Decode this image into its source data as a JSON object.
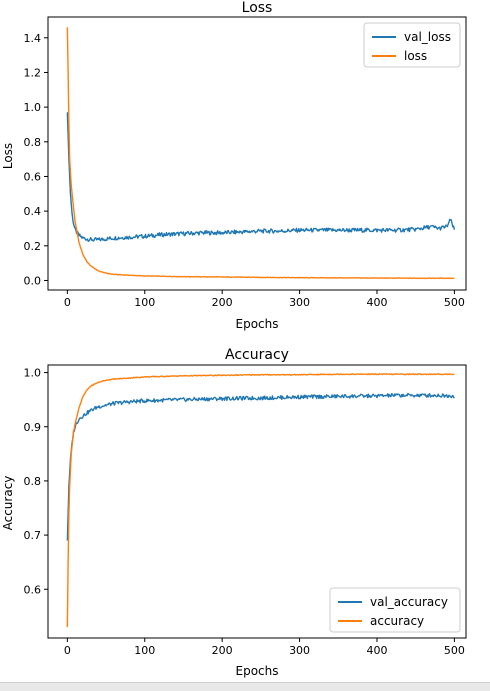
{
  "chart_data": [
    {
      "type": "line",
      "title": "Loss",
      "xlabel": "Epochs",
      "ylabel": "Loss",
      "xlim": [
        -25,
        515
      ],
      "ylim": [
        -0.055,
        1.52
      ],
      "xticks": [
        0,
        100,
        200,
        300,
        400,
        500
      ],
      "yticks": [
        0.0,
        0.2,
        0.4,
        0.6,
        0.8,
        1.0,
        1.2,
        1.4
      ],
      "tick_labels_x": [
        "0",
        "100",
        "200",
        "300",
        "400",
        "500"
      ],
      "tick_labels_y": [
        "0.0",
        "0.2",
        "0.4",
        "0.6",
        "0.8",
        "1.0",
        "1.2",
        "1.4"
      ],
      "grid": false,
      "legend_position": "top-right",
      "series": [
        {
          "name": "val_loss",
          "color": "#1f77b4",
          "x": [
            0,
            2,
            4,
            6,
            8,
            10,
            15,
            20,
            25,
            30,
            40,
            50,
            60,
            80,
            100,
            125,
            150,
            175,
            200,
            225,
            250,
            275,
            300,
            325,
            350,
            375,
            400,
            425,
            450,
            470,
            480,
            490,
            495,
            500
          ],
          "y": [
            0.97,
            0.7,
            0.5,
            0.39,
            0.33,
            0.29,
            0.26,
            0.245,
            0.24,
            0.235,
            0.235,
            0.24,
            0.245,
            0.25,
            0.255,
            0.265,
            0.27,
            0.275,
            0.275,
            0.28,
            0.285,
            0.285,
            0.29,
            0.29,
            0.29,
            0.29,
            0.29,
            0.29,
            0.295,
            0.31,
            0.3,
            0.31,
            0.35,
            0.29
          ]
        },
        {
          "name": "loss",
          "color": "#ff7f0e",
          "x": [
            0,
            1,
            2,
            3,
            5,
            8,
            10,
            15,
            20,
            25,
            30,
            40,
            50,
            60,
            80,
            100,
            150,
            200,
            250,
            300,
            350,
            400,
            450,
            500
          ],
          "y": [
            1.46,
            1.2,
            0.9,
            0.7,
            0.55,
            0.42,
            0.34,
            0.22,
            0.15,
            0.11,
            0.085,
            0.055,
            0.042,
            0.035,
            0.03,
            0.026,
            0.022,
            0.02,
            0.018,
            0.016,
            0.015,
            0.014,
            0.013,
            0.013
          ]
        }
      ]
    },
    {
      "type": "line",
      "title": "Accuracy",
      "xlabel": "Epochs",
      "ylabel": "Accuracy",
      "xlim": [
        -25,
        515
      ],
      "ylim": [
        0.51,
        1.014
      ],
      "xticks": [
        0,
        100,
        200,
        300,
        400,
        500
      ],
      "yticks": [
        0.6,
        0.7,
        0.8,
        0.9,
        1.0
      ],
      "tick_labels_x": [
        "0",
        "100",
        "200",
        "300",
        "400",
        "500"
      ],
      "tick_labels_y": [
        "0.6",
        "0.7",
        "0.8",
        "0.9",
        "1.0"
      ],
      "grid": false,
      "legend_position": "bottom-right",
      "series": [
        {
          "name": "val_accuracy",
          "color": "#1f77b4",
          "x": [
            0,
            2,
            4,
            6,
            8,
            10,
            15,
            20,
            30,
            40,
            50,
            60,
            80,
            100,
            125,
            150,
            175,
            200,
            250,
            300,
            350,
            400,
            425,
            450,
            475,
            500
          ],
          "y": [
            0.69,
            0.79,
            0.84,
            0.87,
            0.89,
            0.9,
            0.915,
            0.92,
            0.93,
            0.937,
            0.94,
            0.943,
            0.946,
            0.948,
            0.949,
            0.95,
            0.951,
            0.952,
            0.953,
            0.955,
            0.956,
            0.957,
            0.958,
            0.958,
            0.958,
            0.957
          ]
        },
        {
          "name": "accuracy",
          "color": "#ff7f0e",
          "x": [
            0,
            1,
            2,
            3,
            5,
            8,
            10,
            15,
            20,
            25,
            30,
            40,
            50,
            60,
            80,
            100,
            150,
            200,
            250,
            300,
            350,
            400,
            450,
            500
          ],
          "y": [
            0.53,
            0.65,
            0.74,
            0.79,
            0.85,
            0.89,
            0.905,
            0.935,
            0.955,
            0.967,
            0.975,
            0.982,
            0.986,
            0.988,
            0.99,
            0.992,
            0.994,
            0.995,
            0.996,
            0.996,
            0.997,
            0.997,
            0.997,
            0.997
          ]
        }
      ]
    }
  ]
}
